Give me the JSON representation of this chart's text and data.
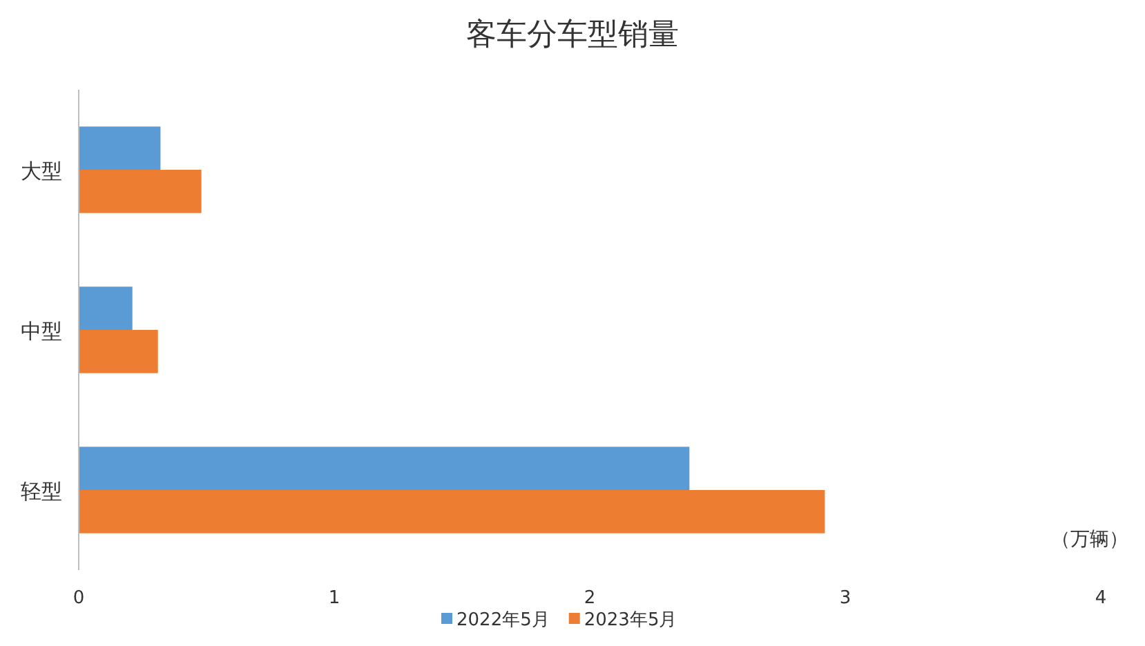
{
  "chart_data": {
    "type": "bar",
    "orientation": "horizontal",
    "title": "客车分车型销量",
    "categories": [
      "大型",
      "中型",
      "轻型"
    ],
    "series": [
      {
        "name": "2022年5月",
        "color": "#5b9bd5",
        "values": [
          0.32,
          0.21,
          2.39
        ]
      },
      {
        "name": "2023年5月",
        "color": "#ed7d31",
        "values": [
          0.48,
          0.31,
          2.92
        ]
      }
    ],
    "xlim": [
      0,
      4
    ],
    "xticks": [
      0,
      1,
      2,
      3,
      4
    ],
    "grid": false,
    "legend": "bottom",
    "annotations": [
      "（万辆）"
    ]
  }
}
